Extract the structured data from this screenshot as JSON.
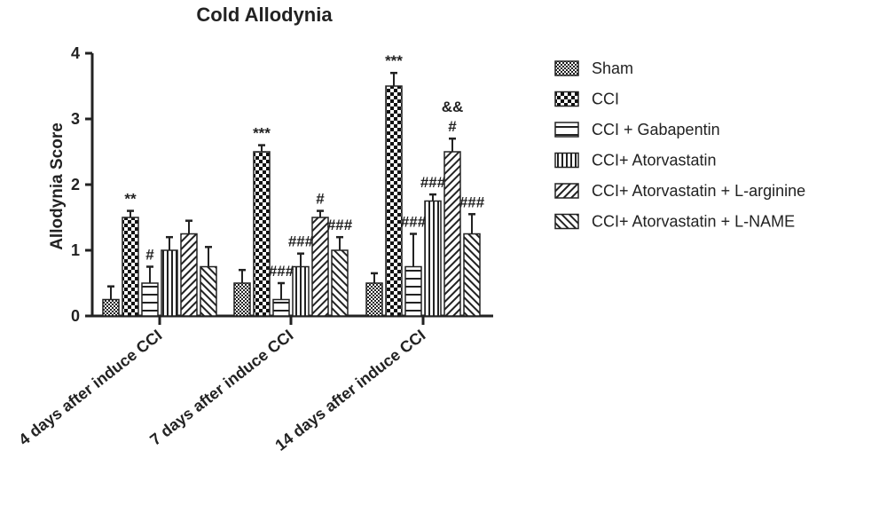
{
  "chart_data": {
    "type": "bar",
    "title": "Cold Allodynia",
    "ylabel": "Allodynia Score",
    "xlabel": "",
    "ylim": [
      0,
      4
    ],
    "yticks": [
      "0",
      "1",
      "2",
      "3",
      "4"
    ],
    "grid": false,
    "legend_position": "right",
    "categories": [
      "4 days after induce CCI",
      "7 days after induce CCI",
      "14 days after induce CCI"
    ],
    "series": [
      {
        "name": "Sham",
        "pattern": "dense-check",
        "values": [
          0.25,
          0.5,
          0.5
        ],
        "errors": [
          0.2,
          0.2,
          0.15
        ],
        "annotations": [
          "",
          "",
          ""
        ]
      },
      {
        "name": "CCI",
        "pattern": "checkerboard",
        "values": [
          1.5,
          2.5,
          3.5
        ],
        "errors": [
          0.1,
          0.1,
          0.2
        ],
        "annotations": [
          "**",
          "***",
          "***"
        ]
      },
      {
        "name": "CCI + Gabapentin",
        "pattern": "horizontal-lines",
        "values": [
          0.5,
          0.25,
          0.75
        ],
        "errors": [
          0.25,
          0.25,
          0.5
        ],
        "annotations": [
          "#",
          "###",
          "###"
        ]
      },
      {
        "name": "CCI+ Atorvastatin",
        "pattern": "vertical-lines",
        "values": [
          1.0,
          0.75,
          1.75
        ],
        "errors": [
          0.2,
          0.2,
          0.1
        ],
        "annotations": [
          "",
          "###",
          "###"
        ]
      },
      {
        "name": "CCI+ Atorvastatin + L-arginine",
        "pattern": "diagonal-up",
        "values": [
          1.25,
          1.5,
          2.5
        ],
        "errors": [
          0.2,
          0.1,
          0.2
        ],
        "annotations": [
          "",
          "#",
          "#"
        ]
      },
      {
        "name": "CCI+ Atorvastatin + L-NAME",
        "pattern": "diagonal-down",
        "values": [
          0.75,
          1.0,
          1.25
        ],
        "errors": [
          0.3,
          0.2,
          0.3
        ],
        "annotations": [
          "",
          "###",
          "###"
        ]
      }
    ],
    "extra_annotations": [
      {
        "category": 2,
        "series": 4,
        "text": "&&"
      }
    ]
  }
}
